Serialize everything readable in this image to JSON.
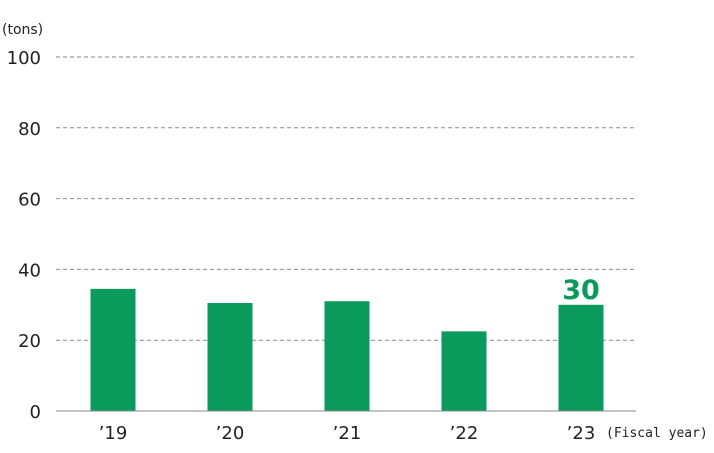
{
  "chart_data": {
    "type": "bar",
    "ylabel": "(tons)",
    "xlabel": "(Fiscal year)",
    "categories": [
      "’19",
      "’20",
      "’21",
      "’22",
      "’23"
    ],
    "values": [
      34.5,
      30.5,
      31,
      22.5,
      30
    ],
    "ylim": [
      0,
      100
    ],
    "yticks": [
      0,
      20,
      40,
      60,
      80,
      100
    ],
    "grid": true,
    "bar_color": "#0a9a5c",
    "data_labels": [
      {
        "category": "’23",
        "text": "30"
      }
    ]
  }
}
